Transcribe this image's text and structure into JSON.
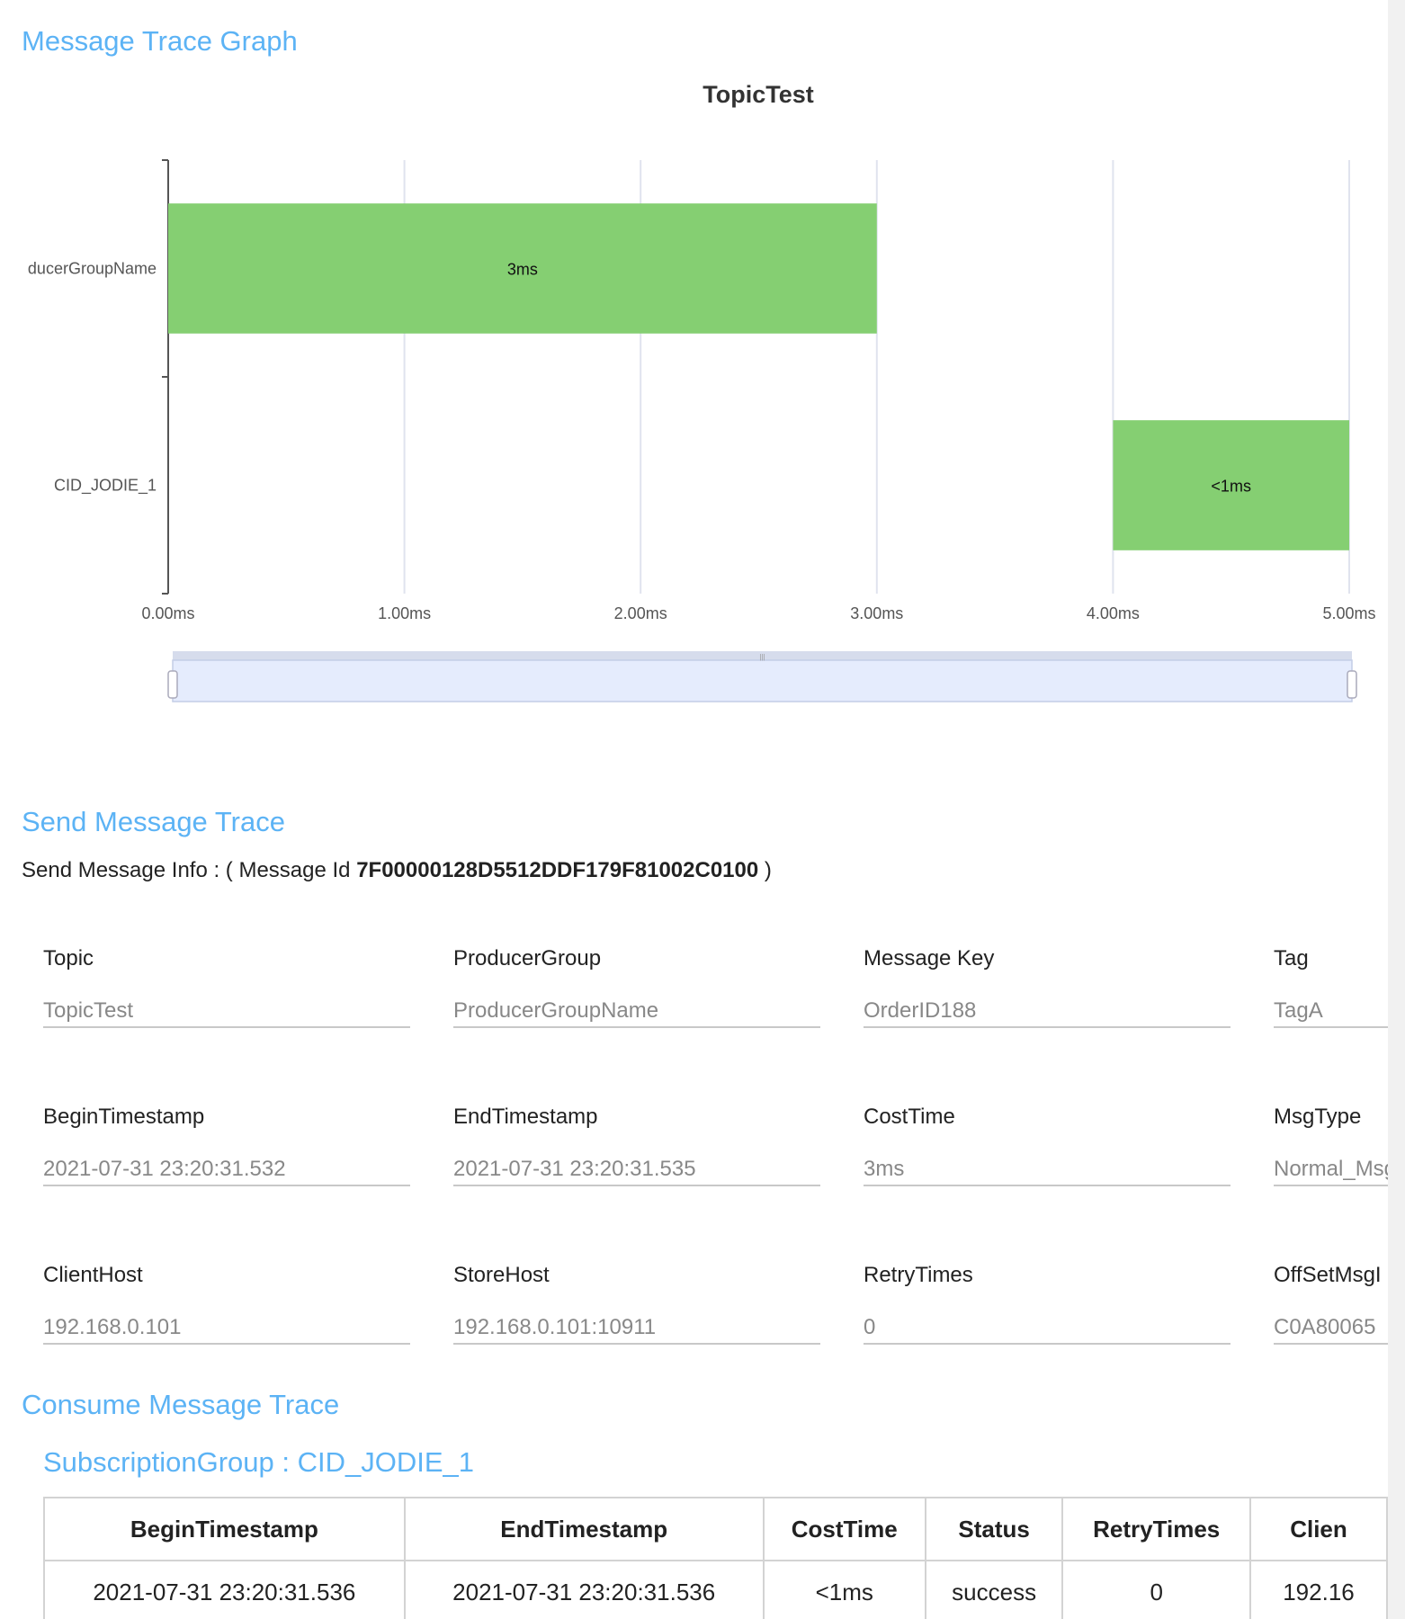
{
  "sections": {
    "graph_title": "Message Trace Graph",
    "send_title": "Send Message Trace",
    "consume_title": "Consume Message Trace"
  },
  "chart_data": {
    "type": "bar",
    "title": "TopicTest",
    "orientation": "horizontal-gantt",
    "categories": [
      "ProducerGroupName",
      "CID_JODIE_1"
    ],
    "visible_category_labels": [
      "ducerGroupName",
      "CID_JODIE_1"
    ],
    "bars": [
      {
        "category": "ProducerGroupName",
        "start": 0,
        "end": 3,
        "label": "3ms"
      },
      {
        "category": "CID_JODIE_1",
        "start": 4,
        "end": 5,
        "label": "<1ms"
      }
    ],
    "xticks": [
      "0.00ms",
      "1.00ms",
      "2.00ms",
      "3.00ms",
      "4.00ms",
      "5.00ms"
    ],
    "xlim": [
      0,
      5
    ],
    "grid": true,
    "bar_color": "#85cf72",
    "data_zoom": {
      "start_percent": 0,
      "end_percent": 100
    }
  },
  "send_info": {
    "prefix": "Send Message Info : ( Message Id ",
    "message_id": "7F00000128D5512DDF179F81002C0100",
    "suffix": " )"
  },
  "fields": [
    {
      "label": "Topic",
      "value": "TopicTest"
    },
    {
      "label": "ProducerGroup",
      "value": "ProducerGroupName"
    },
    {
      "label": "Message Key",
      "value": "OrderID188"
    },
    {
      "label": "Tag",
      "value": "TagA"
    },
    {
      "label": "BeginTimestamp",
      "value": "2021-07-31 23:20:31.532"
    },
    {
      "label": "EndTimestamp",
      "value": "2021-07-31 23:20:31.535"
    },
    {
      "label": "CostTime",
      "value": "3ms"
    },
    {
      "label": "MsgType",
      "value": "Normal_Msg"
    },
    {
      "label": "ClientHost",
      "value": "192.168.0.101"
    },
    {
      "label": "StoreHost",
      "value": "192.168.0.101:10911"
    },
    {
      "label": "RetryTimes",
      "value": "0"
    },
    {
      "label": "OffSetMsgI",
      "value": "C0A80065"
    }
  ],
  "subscription": {
    "label": "SubscriptionGroup : CID_JODIE_1",
    "columns": [
      "BeginTimestamp",
      "EndTimestamp",
      "CostTime",
      "Status",
      "RetryTimes",
      "Clien"
    ],
    "rows": [
      [
        "2021-07-31 23:20:31.536",
        "2021-07-31 23:20:31.536",
        "<1ms",
        "success",
        "0",
        "192.16"
      ]
    ]
  }
}
